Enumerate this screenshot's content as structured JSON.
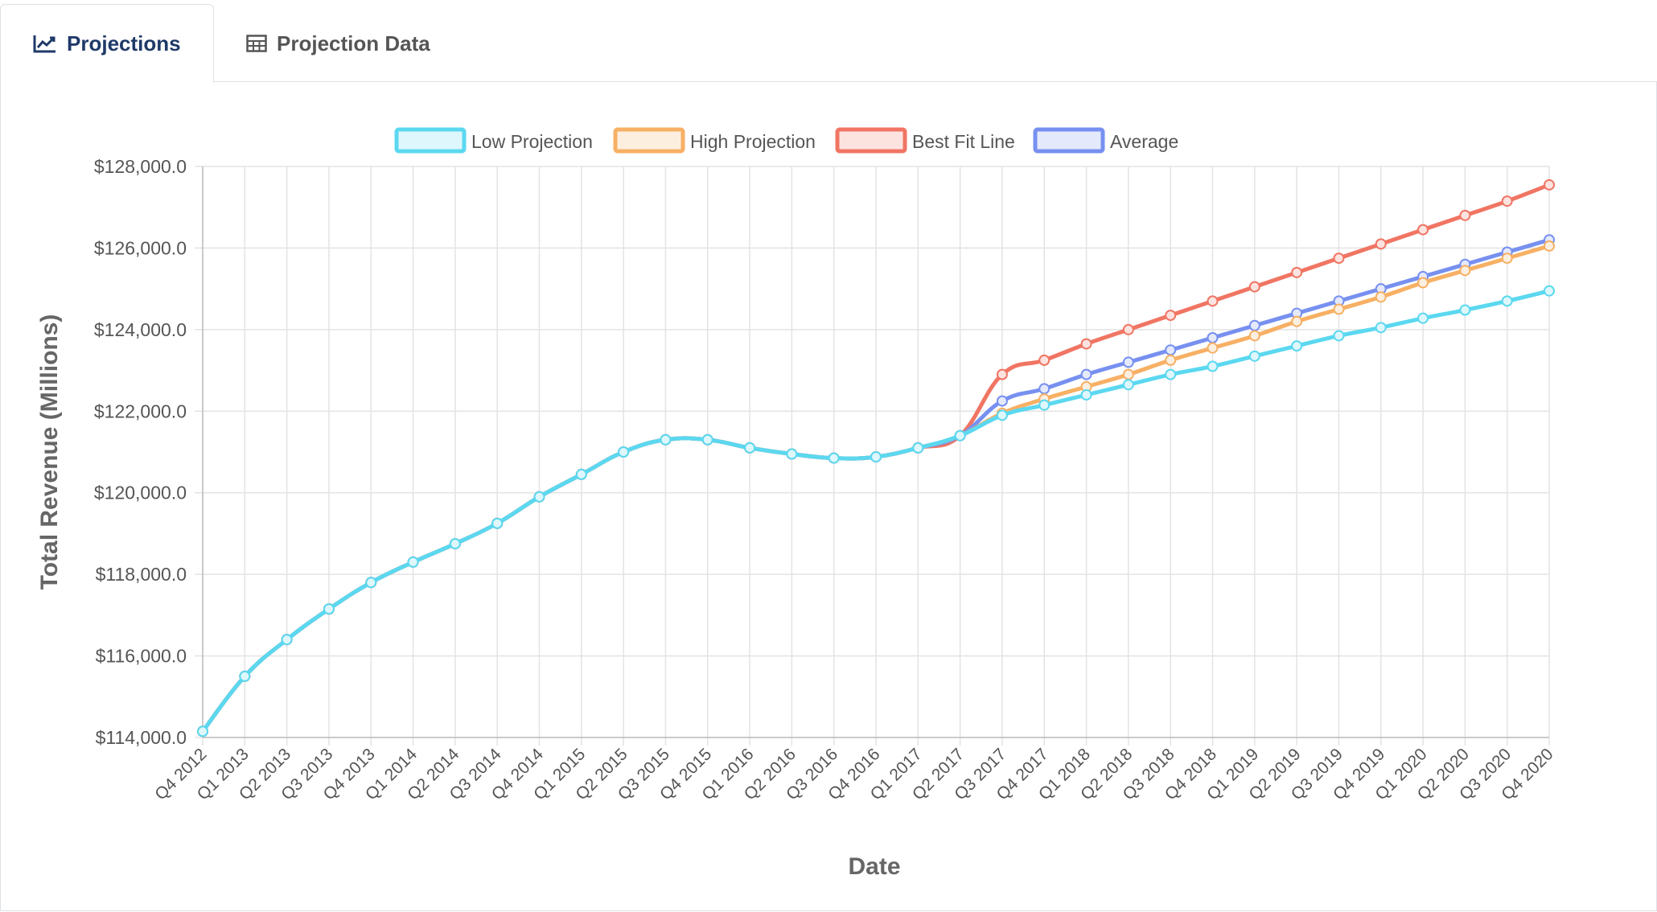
{
  "tabs": [
    {
      "label": "Projections",
      "icon": "line-chart-icon",
      "active": true
    },
    {
      "label": "Projection Data",
      "icon": "table-icon",
      "active": false
    }
  ],
  "chart_data": {
    "type": "line",
    "xlabel": "Date",
    "ylabel": "Total Revenue (Millions)",
    "ylim": [
      114000,
      128000
    ],
    "yticks": [
      "$114,000.0",
      "$116,000.0",
      "$118,000.0",
      "$120,000.0",
      "$122,000.0",
      "$124,000.0",
      "$126,000.0",
      "$128,000.0"
    ],
    "ytick_values": [
      114000,
      116000,
      118000,
      120000,
      122000,
      124000,
      126000,
      128000
    ],
    "grid": true,
    "legend_position": "top",
    "categories": [
      "Q4 2012",
      "Q1 2013",
      "Q2 2013",
      "Q3 2013",
      "Q4 2013",
      "Q1 2014",
      "Q2 2014",
      "Q3 2014",
      "Q4 2014",
      "Q1 2015",
      "Q2 2015",
      "Q3 2015",
      "Q4 2015",
      "Q1 2016",
      "Q2 2016",
      "Q3 2016",
      "Q4 2016",
      "Q1 2017",
      "Q2 2017",
      "Q3 2017",
      "Q4 2017",
      "Q1 2018",
      "Q2 2018",
      "Q3 2018",
      "Q4 2018",
      "Q1 2019",
      "Q2 2019",
      "Q3 2019",
      "Q4 2019",
      "Q1 2020",
      "Q2 2020",
      "Q3 2020",
      "Q4 2020"
    ],
    "series": [
      {
        "name": "Low Projection",
        "color": "#5bd8f0",
        "values": [
          114150,
          115500,
          116400,
          117150,
          117800,
          118300,
          118750,
          119250,
          119900,
          120450,
          121000,
          121300,
          121300,
          121100,
          120950,
          120850,
          120880,
          121100,
          121400,
          121900,
          122150,
          122400,
          122650,
          122900,
          123100,
          123350,
          123600,
          123850,
          124050,
          124280,
          124480,
          124700,
          124950
        ]
      },
      {
        "name": "High Projection",
        "color": "#f7b064",
        "values": [
          114150,
          115500,
          116400,
          117150,
          117800,
          118300,
          118750,
          119250,
          119900,
          120450,
          121000,
          121300,
          121300,
          121100,
          120950,
          120850,
          120880,
          121100,
          121400,
          121950,
          122300,
          122600,
          122900,
          123250,
          123550,
          123850,
          124200,
          124500,
          124800,
          125150,
          125450,
          125750,
          126050
        ]
      },
      {
        "name": "Best Fit Line",
        "color": "#f07563",
        "values": [
          114150,
          115500,
          116400,
          117150,
          117800,
          118300,
          118750,
          119250,
          119900,
          120450,
          121000,
          121300,
          121300,
          121100,
          120950,
          120850,
          120880,
          121100,
          121400,
          122900,
          123250,
          123650,
          124000,
          124350,
          124700,
          125050,
          125400,
          125750,
          126100,
          126450,
          126800,
          127150,
          127550
        ]
      },
      {
        "name": "Average",
        "color": "#7790f0",
        "values": [
          114150,
          115500,
          116400,
          117150,
          117800,
          118300,
          118750,
          119250,
          119900,
          120450,
          121000,
          121300,
          121300,
          121100,
          120950,
          120850,
          120880,
          121100,
          121400,
          122250,
          122550,
          122900,
          123200,
          123500,
          123800,
          124100,
          124400,
          124700,
          125000,
          125300,
          125600,
          125900,
          126200
        ]
      }
    ]
  }
}
